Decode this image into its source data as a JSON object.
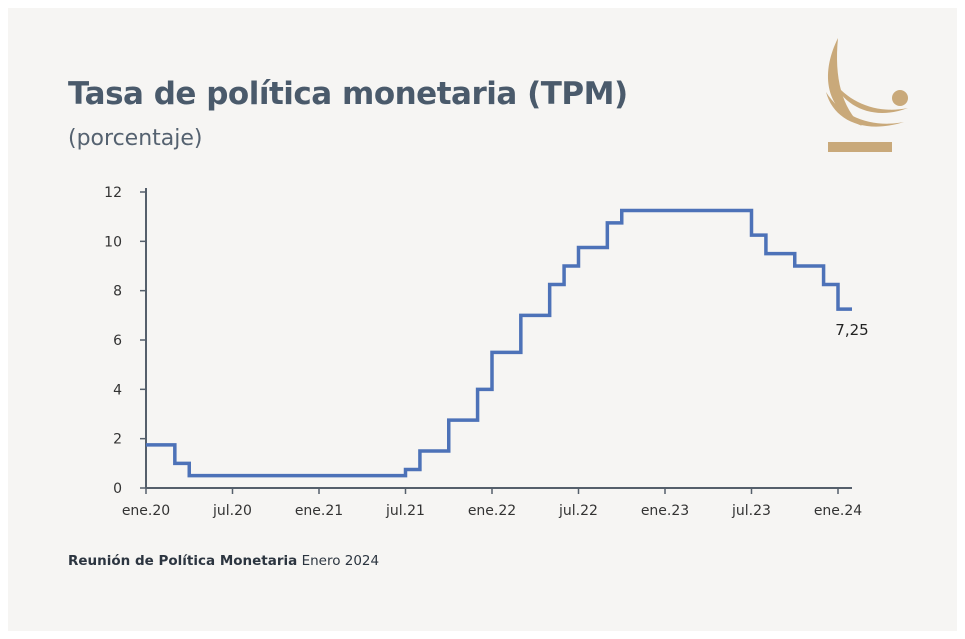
{
  "title": "Tasa de política monetaria (TPM)",
  "subtitle": "(porcentaje)",
  "footer": {
    "bold": "Reunión de Política Monetaria",
    "rest": "Enero 2024"
  },
  "colors": {
    "line": "#4d72b8",
    "axis": "#555f6b",
    "logo_gold": "#c9a97a",
    "text": "#4a5a6b"
  },
  "chart_data": {
    "type": "line",
    "title": "Tasa de política monetaria (TPM)",
    "subtitle": "(porcentaje)",
    "xlabel": "",
    "ylabel": "",
    "ylim": [
      0,
      12
    ],
    "yticks": [
      0,
      2,
      4,
      6,
      8,
      10,
      12
    ],
    "grid": false,
    "x_start": "2020-01",
    "x_end": "2024-01",
    "xticks": [
      {
        "date": "2020-01",
        "label": "ene.20"
      },
      {
        "date": "2020-07",
        "label": "jul.20"
      },
      {
        "date": "2021-01",
        "label": "ene.21"
      },
      {
        "date": "2021-07",
        "label": "jul.21"
      },
      {
        "date": "2022-01",
        "label": "ene.22"
      },
      {
        "date": "2022-07",
        "label": "jul.22"
      },
      {
        "date": "2023-01",
        "label": "ene.23"
      },
      {
        "date": "2023-07",
        "label": "jul.23"
      },
      {
        "date": "2024-01",
        "label": "ene.24"
      }
    ],
    "series": [
      {
        "step": true,
        "points": [
          {
            "date": "2020-01",
            "value": 1.75
          },
          {
            "date": "2020-03",
            "value": 1.0
          },
          {
            "date": "2020-04",
            "value": 0.5
          },
          {
            "date": "2021-07",
            "value": 0.75
          },
          {
            "date": "2021-08",
            "value": 1.5
          },
          {
            "date": "2021-10",
            "value": 2.75
          },
          {
            "date": "2021-12",
            "value": 4.0
          },
          {
            "date": "2022-01",
            "value": 5.5
          },
          {
            "date": "2022-03",
            "value": 7.0
          },
          {
            "date": "2022-05",
            "value": 8.25
          },
          {
            "date": "2022-06",
            "value": 9.0
          },
          {
            "date": "2022-07",
            "value": 9.75
          },
          {
            "date": "2022-09",
            "value": 10.75
          },
          {
            "date": "2022-10",
            "value": 11.25
          },
          {
            "date": "2023-07",
            "value": 10.25
          },
          {
            "date": "2023-08",
            "value": 9.5
          },
          {
            "date": "2023-10",
            "value": 9.0
          },
          {
            "date": "2023-12",
            "value": 8.25
          },
          {
            "date": "2024-01",
            "value": 7.25
          }
        ]
      }
    ],
    "annotations": [
      {
        "text": "7,25",
        "date": "2024-01",
        "value": 7.25
      }
    ]
  }
}
